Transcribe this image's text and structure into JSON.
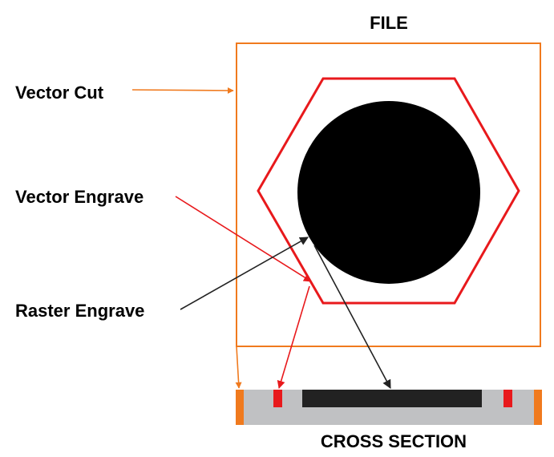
{
  "header": {
    "title": "FILE"
  },
  "labels": {
    "vector_cut": "Vector Cut",
    "vector_engrave": "Vector Engrave",
    "raster_engrave": "Raster Engrave"
  },
  "footer": {
    "title": "CROSS SECTION"
  },
  "colors": {
    "vector_cut": "#f07a1e",
    "vector_engrave": "#e8191c",
    "raster_engrave": "#000000",
    "material": "#c0c1c3",
    "arrow_dark": "#222222"
  }
}
